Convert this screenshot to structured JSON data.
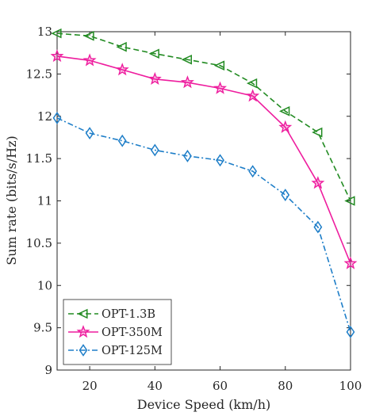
{
  "chart_data": {
    "type": "line",
    "title": "",
    "xlabel": "Device Speed (km/h)",
    "ylabel": "Sum rate (bits/s/Hz)",
    "xlim": [
      10,
      100
    ],
    "ylim": [
      9,
      13
    ],
    "xticks": [
      "20",
      "40",
      "60",
      "80",
      "100"
    ],
    "yticks": [
      "9",
      "9.5",
      "10",
      "10.5",
      "11",
      "11.5",
      "12",
      "12.5",
      "13"
    ],
    "grid": false,
    "legend_position": "bottom-left",
    "x": [
      10,
      20,
      30,
      40,
      50,
      60,
      70,
      80,
      90,
      100
    ],
    "series": [
      {
        "name": "OPT-1.3B",
        "color": "#228b22",
        "line_style": "dashed",
        "marker": "triangle-left",
        "values": [
          12.98,
          12.95,
          12.82,
          12.74,
          12.67,
          12.6,
          12.39,
          12.06,
          11.81,
          11.0
        ]
      },
      {
        "name": "OPT-350M",
        "color": "#ee1d9e",
        "line_style": "solid",
        "marker": "star",
        "values": [
          12.71,
          12.66,
          12.55,
          12.44,
          12.4,
          12.33,
          12.24,
          11.87,
          11.21,
          10.26
        ]
      },
      {
        "name": "OPT-125M",
        "color": "#1e7ec8",
        "line_style": "dashdot",
        "marker": "diamond",
        "values": [
          11.98,
          11.8,
          11.71,
          11.6,
          11.53,
          11.48,
          11.35,
          11.07,
          10.69,
          9.45
        ]
      }
    ]
  }
}
